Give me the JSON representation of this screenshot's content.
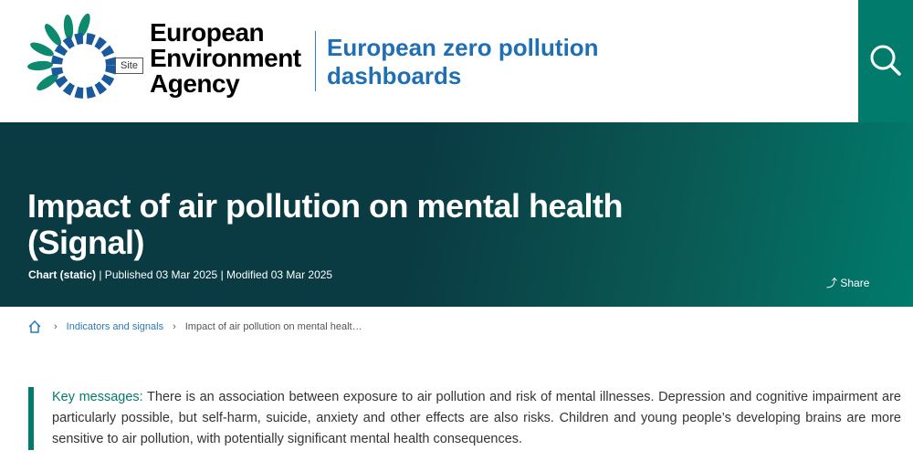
{
  "header": {
    "logo_text": [
      "European",
      "Environment",
      "Agency"
    ],
    "site_label": "Site",
    "dashboard_title": "European zero pollution dashboards",
    "search_icon": "search-icon"
  },
  "hero": {
    "title": "Impact of air pollution on mental health (Signal)",
    "type": "Chart (static)",
    "published": "| Published 03 Mar 2025",
    "modified": "| Modified 03 Mar 2025",
    "share": "Share"
  },
  "breadcrumb": {
    "home_icon": "home-icon",
    "items": [
      "Indicators and signals",
      "Impact of air pollution on mental healt…"
    ]
  },
  "key_messages": {
    "label": "Key messages:",
    "text": "There is an association between exposure to air pollution and risk of mental illnesses. Depression and cognitive impairment are particularly possible, but self-harm, suicide, anxiety and other effects are also risks. Children and young people’s developing brains are more sensitive to air pollution, with potentially significant mental health consequences."
  },
  "colors": {
    "teal": "#007b6c",
    "blue": "#1f6fb4",
    "dark": "#0a3a42"
  }
}
